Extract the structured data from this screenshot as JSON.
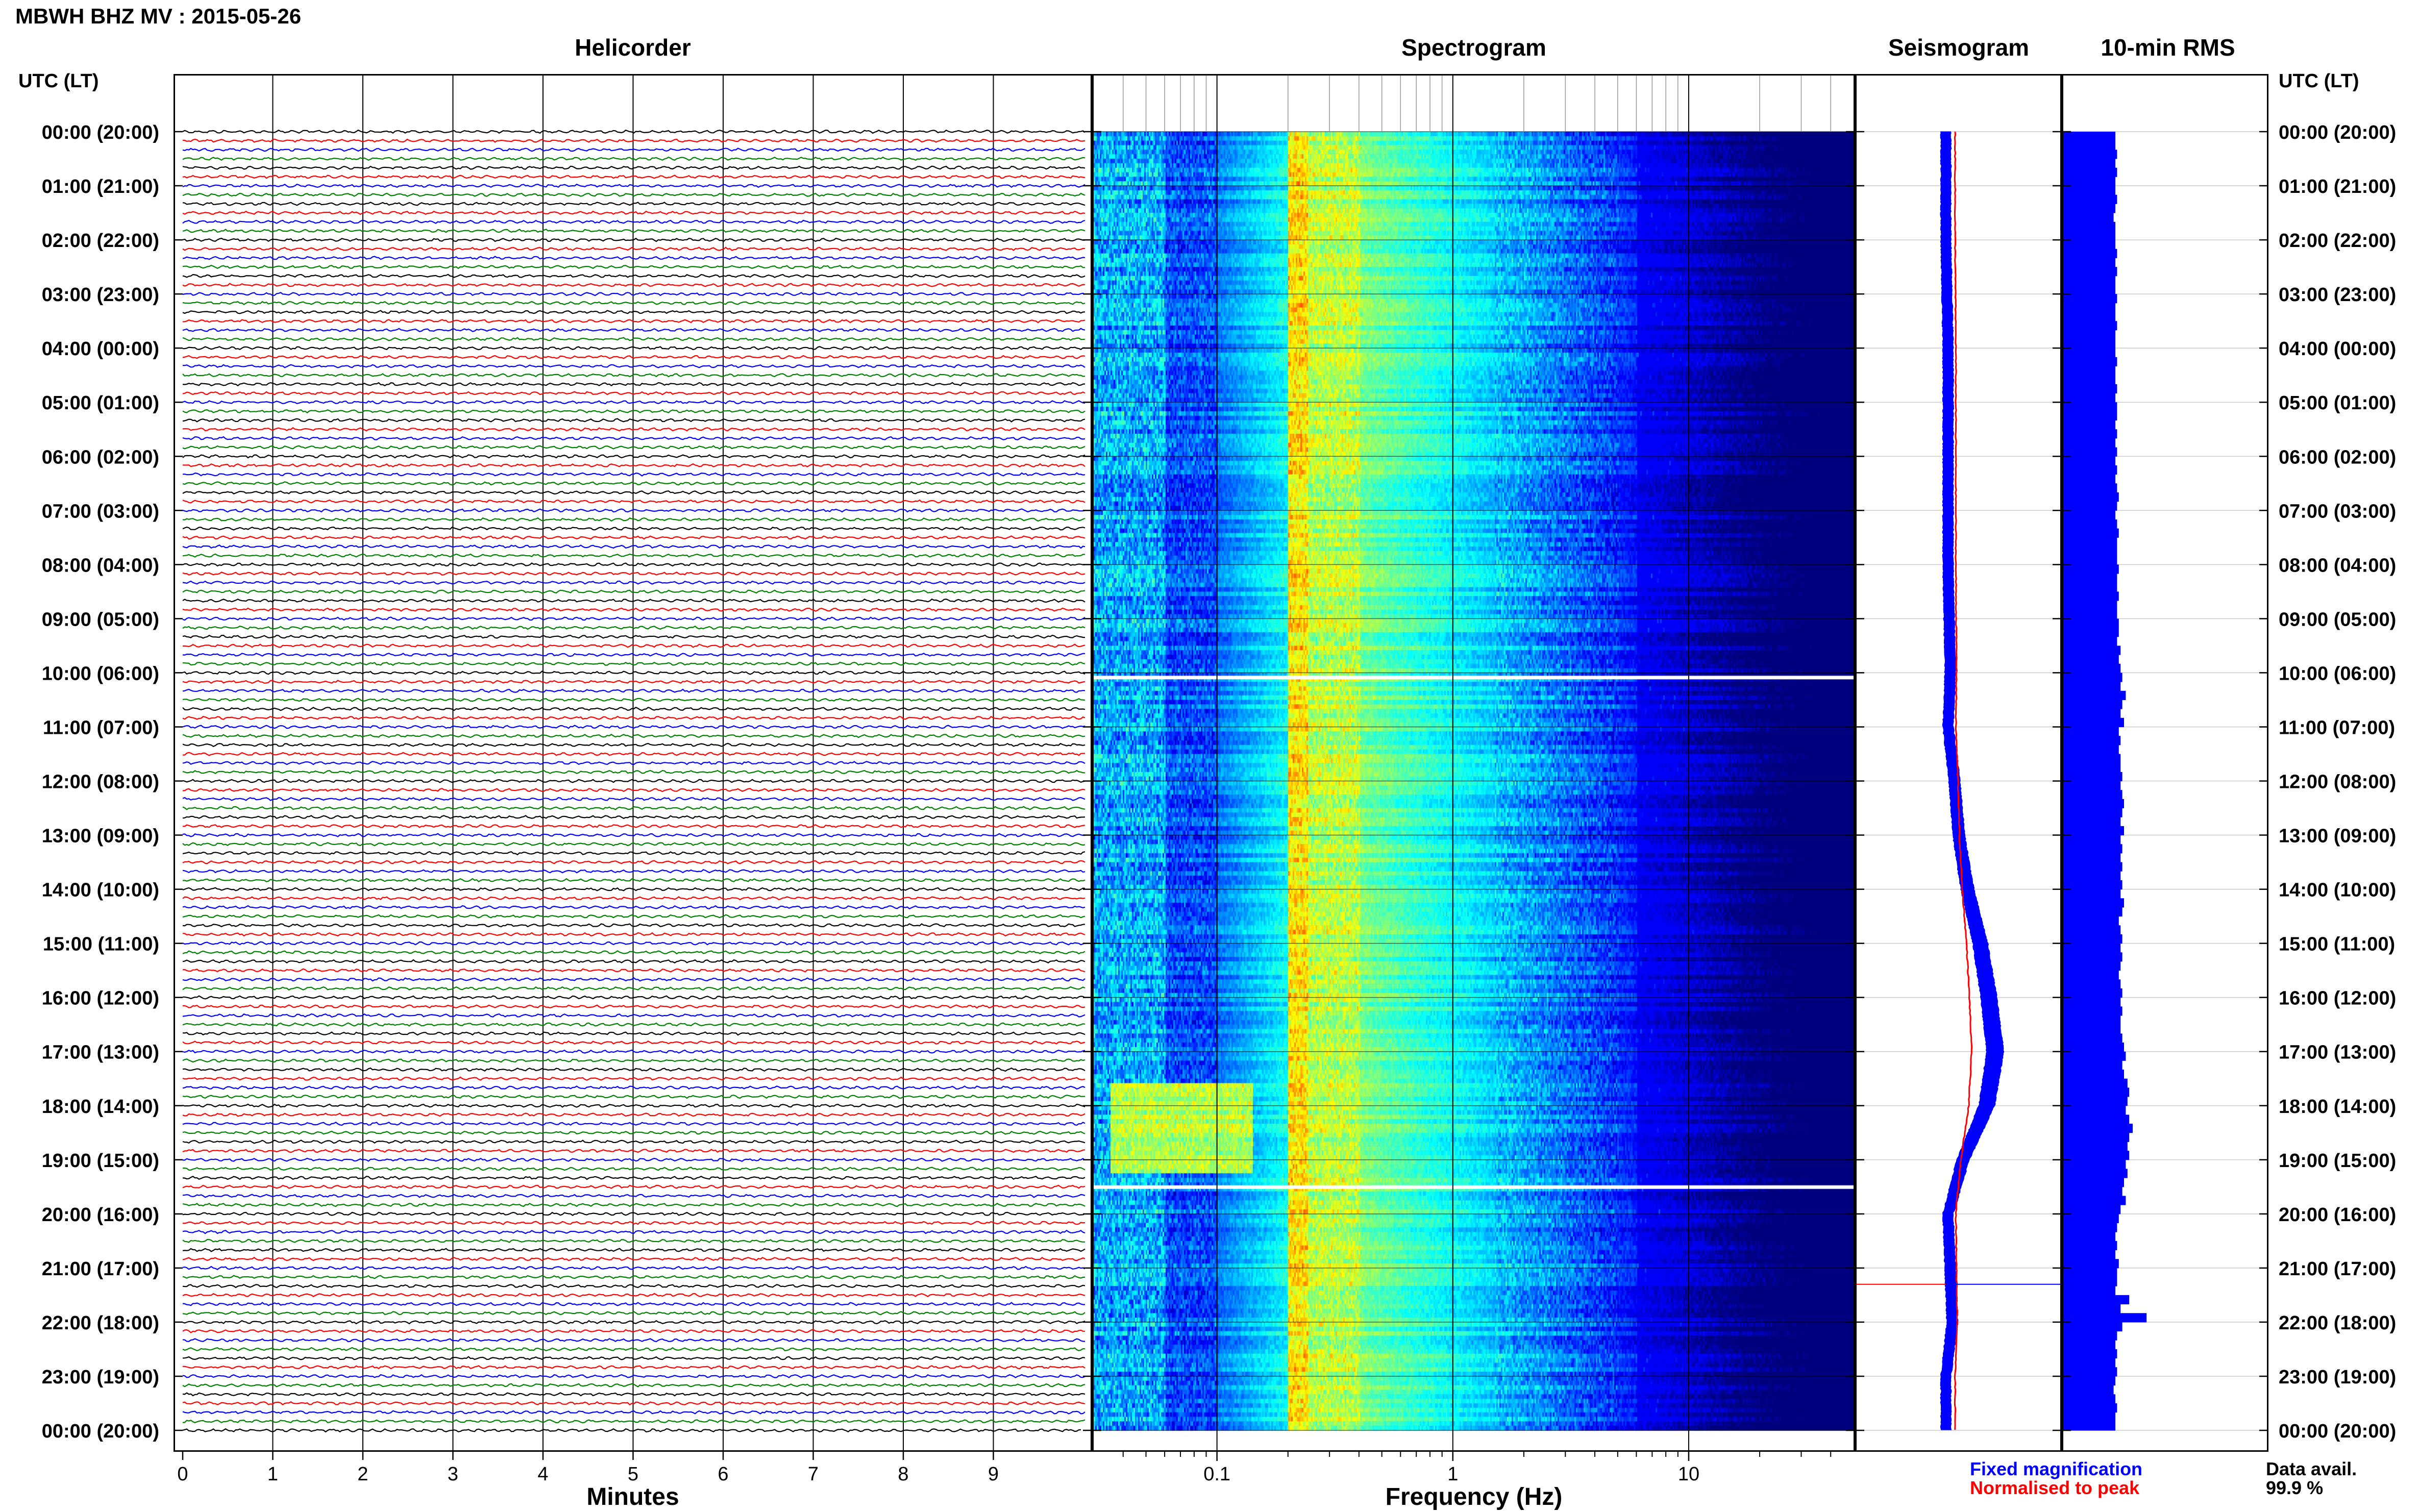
{
  "title": "MBWH BHZ MV : 2015-05-26",
  "panels": {
    "helicorder": "Helicorder",
    "spectrogram": "Spectrogram",
    "seismogram": "Seismogram",
    "rms": "10-min RMS"
  },
  "utc_header": "UTC (LT)",
  "time_labels": [
    "00:00 (20:00)",
    "01:00 (21:00)",
    "02:00 (22:00)",
    "03:00 (23:00)",
    "04:00 (00:00)",
    "05:00 (01:00)",
    "06:00 (02:00)",
    "07:00 (03:00)",
    "08:00 (04:00)",
    "09:00 (05:00)",
    "10:00 (06:00)",
    "11:00 (07:00)",
    "12:00 (08:00)",
    "13:00 (09:00)",
    "14:00 (10:00)",
    "15:00 (11:00)",
    "16:00 (12:00)",
    "17:00 (13:00)",
    "18:00 (14:00)",
    "19:00 (15:00)",
    "20:00 (16:00)",
    "21:00 (17:00)",
    "22:00 (18:00)",
    "23:00 (19:00)",
    "00:00 (20:00)"
  ],
  "x_axes": {
    "helicorder_label": "Minutes",
    "helicorder_ticks": [
      "0",
      "1",
      "2",
      "3",
      "4",
      "5",
      "6",
      "7",
      "8",
      "9"
    ],
    "spectrogram_label": "Frequency (Hz)",
    "spectrogram_ticks": [
      "0.1",
      "1",
      "10"
    ]
  },
  "legend": {
    "fixed": "Fixed magnification",
    "normalised": "Normalised to peak"
  },
  "data_availability": {
    "label": "Data avail.",
    "value": "99.9 %"
  },
  "colors": {
    "trace_cycle": [
      "#000000",
      "#ff0000",
      "#0000ff",
      "#008000"
    ],
    "fixed": "#0000ff",
    "normalised": "#ff0000",
    "rms_bar": "#0000ff"
  },
  "chart_data": {
    "type": "heatmap",
    "station": "MBWH",
    "channel": "BHZ",
    "network": "MV",
    "date": "2015-05-26",
    "helicorder": {
      "xlim_minutes": [
        0,
        10
      ],
      "traces_per_hour": 6,
      "hours": 24
    },
    "spectrogram": {
      "scale": "log",
      "xlim_hz": [
        0.03,
        50
      ],
      "data_gaps_utc": [
        "10:05",
        "19:30"
      ],
      "microseism_band_hz": [
        0.2,
        0.4
      ]
    },
    "seismogram_envelope_profile": [
      [
        0,
        1.0
      ],
      [
        2,
        1.0
      ],
      [
        4,
        1.1
      ],
      [
        6,
        1.1
      ],
      [
        8,
        1.1
      ],
      [
        10,
        1.2
      ],
      [
        11,
        1.1
      ],
      [
        12,
        1.4
      ],
      [
        13,
        1.6
      ],
      [
        14,
        2.0
      ],
      [
        15,
        2.6
      ],
      [
        16,
        3.0
      ],
      [
        17,
        3.3
      ],
      [
        18,
        2.9
      ],
      [
        19,
        1.8
      ],
      [
        20,
        1.1
      ],
      [
        21,
        1.2
      ],
      [
        22,
        1.3
      ],
      [
        23,
        1.0
      ],
      [
        24,
        1.0
      ]
    ],
    "rms_10min": [
      0.3,
      0.3,
      0.31,
      0.3,
      0.31,
      0.3,
      0.3,
      0.31,
      0.3,
      0.29,
      0.3,
      0.3,
      0.3,
      0.31,
      0.3,
      0.31,
      0.3,
      0.3,
      0.31,
      0.3,
      0.3,
      0.31,
      0.3,
      0.3,
      0.3,
      0.31,
      0.3,
      0.3,
      0.31,
      0.3,
      0.31,
      0.31,
      0.3,
      0.31,
      0.3,
      0.31,
      0.3,
      0.31,
      0.3,
      0.31,
      0.32,
      0.31,
      0.3,
      0.31,
      0.32,
      0.31,
      0.31,
      0.31,
      0.32,
      0.31,
      0.31,
      0.32,
      0.31,
      0.31,
      0.32,
      0.32,
      0.31,
      0.33,
      0.32,
      0.33,
      0.34,
      0.33,
      0.36,
      0.34,
      0.33,
      0.35,
      0.32,
      0.33,
      0.32,
      0.33,
      0.33,
      0.34,
      0.33,
      0.34,
      0.35,
      0.34,
      0.33,
      0.35,
      0.33,
      0.34,
      0.33,
      0.34,
      0.33,
      0.34,
      0.33,
      0.35,
      0.34,
      0.32,
      0.33,
      0.34,
      0.33,
      0.34,
      0.33,
      0.32,
      0.33,
      0.34,
      0.33,
      0.34,
      0.33,
      0.33,
      0.34,
      0.35,
      0.36,
      0.34,
      0.35,
      0.37,
      0.38,
      0.37,
      0.36,
      0.38,
      0.4,
      0.38,
      0.37,
      0.38,
      0.36,
      0.37,
      0.35,
      0.34,
      0.36,
      0.33,
      0.32,
      0.31,
      0.3,
      0.31,
      0.3,
      0.32,
      0.31,
      0.31,
      0.3,
      0.38,
      0.33,
      0.48,
      0.34,
      0.31,
      0.3,
      0.31,
      0.3,
      0.31,
      0.3,
      0.29,
      0.3,
      0.31,
      0.3,
      0.3
    ]
  }
}
